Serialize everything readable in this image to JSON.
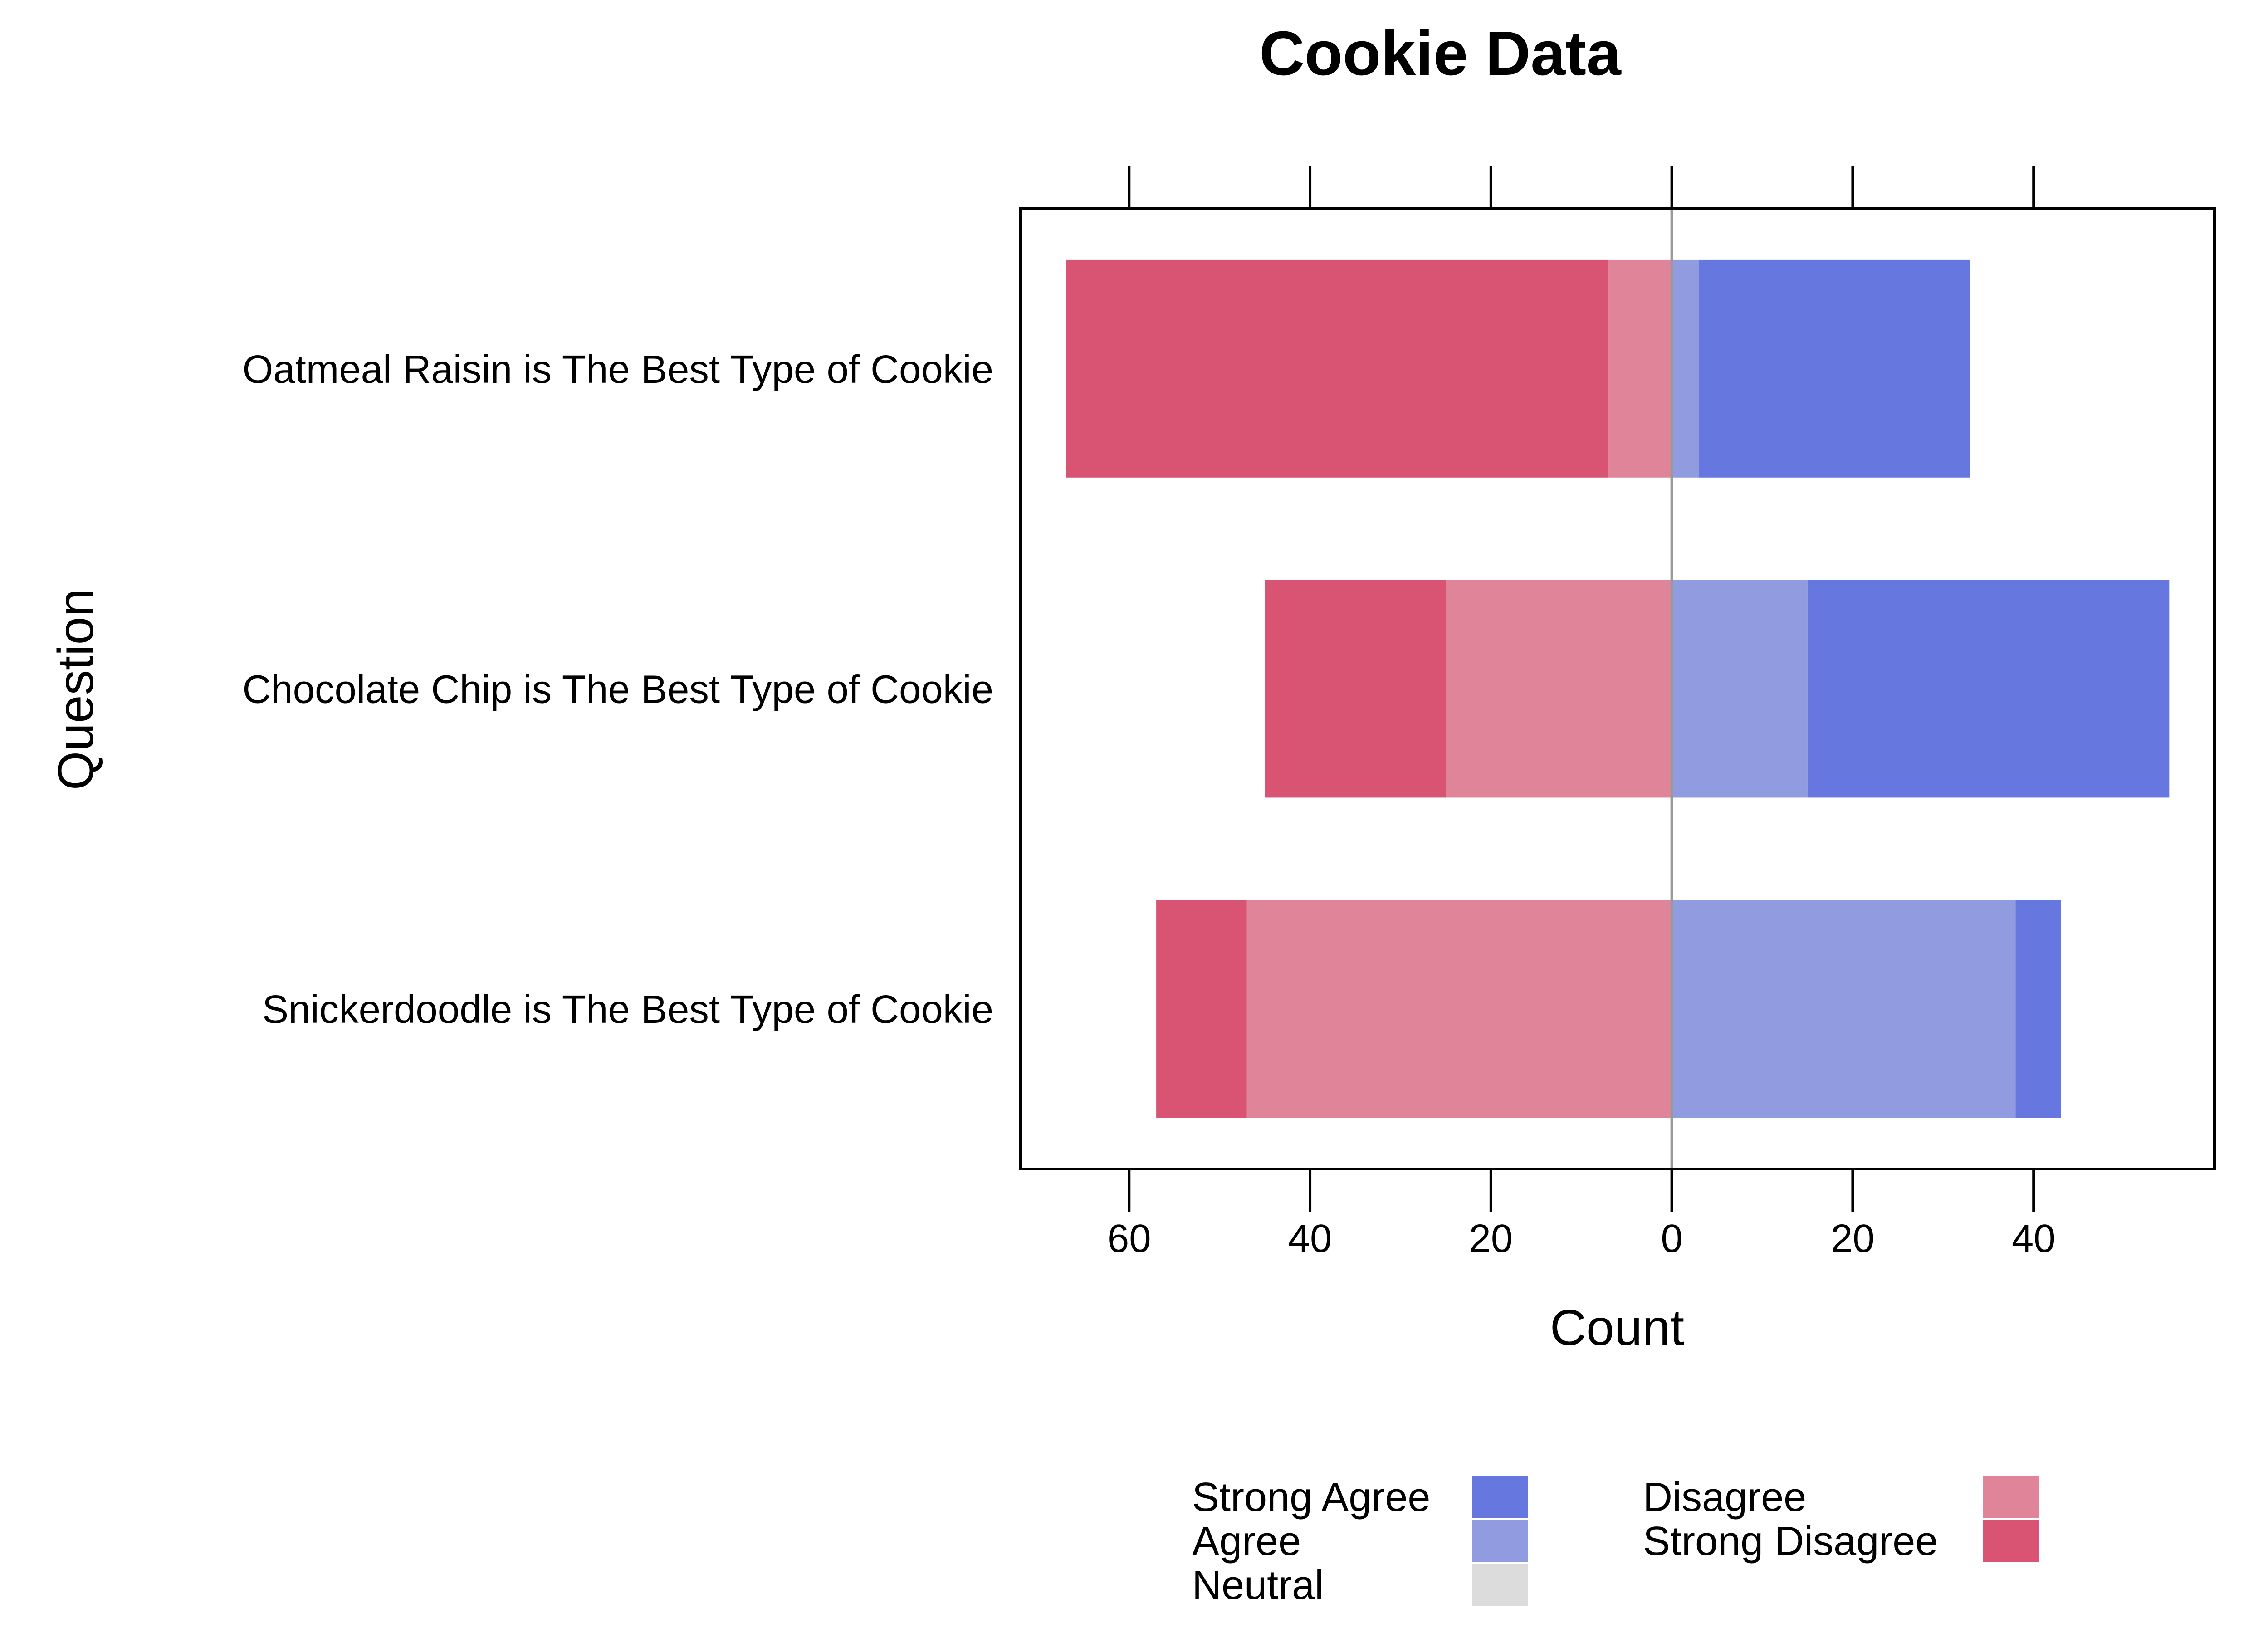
{
  "chart_data": {
    "type": "bar",
    "orientation": "horizontal-diverging",
    "title": "Cookie Data",
    "xlabel": "Count",
    "ylabel": "Question",
    "x_ticks_left": [
      60,
      40,
      20,
      0
    ],
    "x_ticks_right": [
      20,
      40
    ],
    "xlim_left": 72,
    "xlim_right": 60,
    "categories": [
      "Oatmeal Raisin is The Best Type of Cookie",
      "Chocolate Chip is The Best Type of Cookie",
      "Snickerdoodle is The Best Type of Cookie"
    ],
    "series": [
      {
        "name": "Strong Agree",
        "color": "#6677E0",
        "values": [
          30,
          40,
          5
        ]
      },
      {
        "name": "Agree",
        "color": "#919BE0",
        "values": [
          3,
          15,
          38
        ]
      },
      {
        "name": "Neutral",
        "color": "#DCDCDC",
        "values": [
          0,
          0,
          0
        ]
      },
      {
        "name": "Disagree",
        "color": "#E0849A",
        "values": [
          7,
          25,
          47
        ]
      },
      {
        "name": "Strong Disagree",
        "color": "#D95473",
        "values": [
          60,
          20,
          10
        ]
      }
    ],
    "legend_position": "bottom",
    "grid": false
  }
}
